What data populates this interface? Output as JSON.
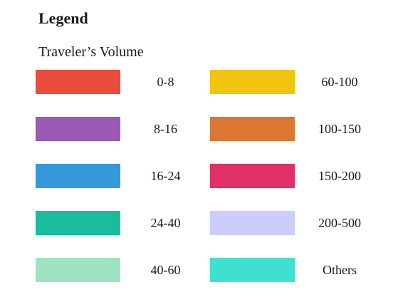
{
  "legend": {
    "title": "Legend",
    "subtitle": "Traveler’s Volume",
    "items": [
      {
        "label": "0-8",
        "color": "#e84c3d"
      },
      {
        "label": "8-16",
        "color": "#9b59b6"
      },
      {
        "label": "16-24",
        "color": "#3498db"
      },
      {
        "label": "24-40",
        "color": "#1abc9c"
      },
      {
        "label": "40-60",
        "color": "#a0e3c2"
      },
      {
        "label": "60-100",
        "color": "#f1c40f"
      },
      {
        "label": "100-150",
        "color": "#dc7633"
      },
      {
        "label": "150-200",
        "color": "#e03166"
      },
      {
        "label": "200-500",
        "color": "#ccccff"
      },
      {
        "label": "Others",
        "color": "#40e0d0"
      }
    ]
  }
}
